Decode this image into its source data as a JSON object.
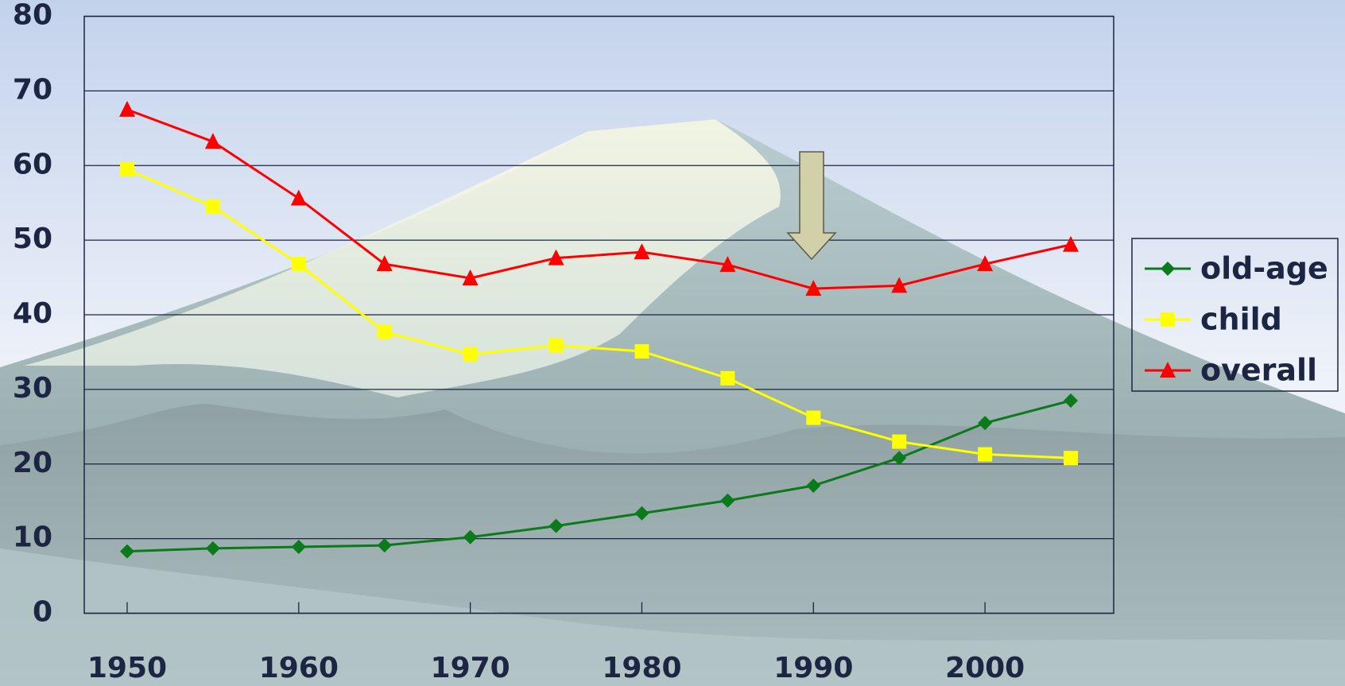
{
  "chart_data": {
    "type": "line",
    "x": [
      1950,
      1955,
      1960,
      1965,
      1970,
      1975,
      1980,
      1985,
      1990,
      1995,
      2000,
      2005
    ],
    "series": [
      {
        "name": "old-age",
        "color": "#0a7a1a",
        "marker": "diamond",
        "values": [
          8.3,
          8.7,
          8.9,
          9.1,
          10.2,
          11.7,
          13.4,
          15.1,
          17.1,
          20.8,
          25.5,
          28.5
        ]
      },
      {
        "name": "child",
        "color": "#ffff00",
        "marker": "square",
        "values": [
          59.5,
          54.5,
          46.8,
          37.7,
          34.7,
          35.9,
          35.1,
          31.5,
          26.2,
          23.0,
          21.3,
          20.8
        ]
      },
      {
        "name": "overall",
        "color": "#ff0000",
        "marker": "triangle",
        "values": [
          67.5,
          63.2,
          55.6,
          46.8,
          44.9,
          47.6,
          48.4,
          46.7,
          43.5,
          43.9,
          46.8,
          49.4
        ]
      }
    ],
    "xlim": [
      1947.5,
      2007.5
    ],
    "xticks": [
      1950,
      1960,
      1970,
      1980,
      1990,
      2000
    ],
    "ylim": [
      0,
      80
    ],
    "yticks": [
      0,
      10,
      20,
      30,
      40,
      50,
      60,
      70,
      80
    ],
    "grid": true,
    "legend": "right"
  }
}
